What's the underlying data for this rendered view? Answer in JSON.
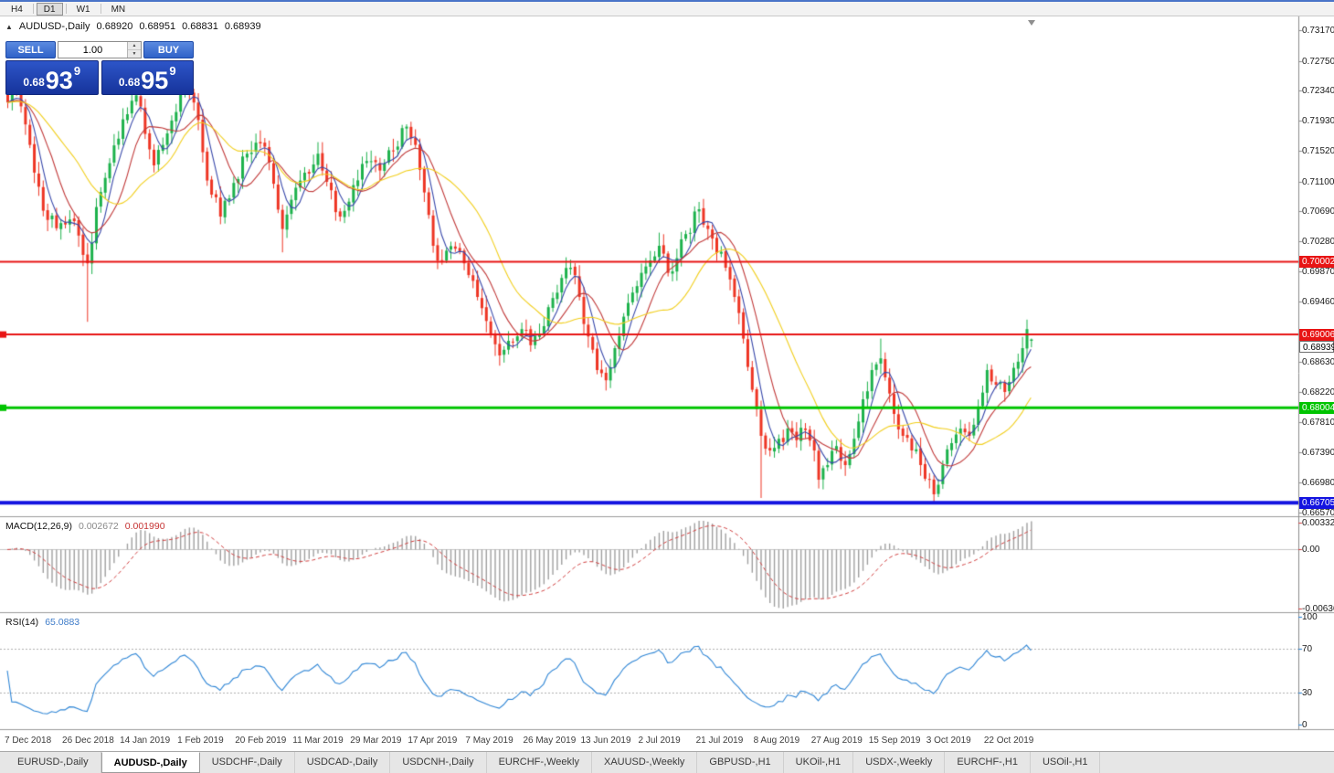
{
  "toolbar": {
    "periods": [
      {
        "label": "H4",
        "active": false
      },
      {
        "label": "D1",
        "active": true
      },
      {
        "label": "W1",
        "active": false
      },
      {
        "label": "MN",
        "active": false
      }
    ]
  },
  "chart_header": {
    "symbol": "AUDUSD-,Daily",
    "open": "0.68920",
    "high": "0.68951",
    "low": "0.68831",
    "close": "0.68939"
  },
  "trade_panel": {
    "sell_label": "SELL",
    "buy_label": "BUY",
    "volume": "1.00",
    "bid": {
      "prefix": "0.68",
      "pips": "93",
      "frac": "9"
    },
    "ask": {
      "prefix": "0.68",
      "pips": "95",
      "frac": "9"
    }
  },
  "price_scale": {
    "ticks": [
      {
        "label": "0.73170",
        "value": 0.7317
      },
      {
        "label": "0.72750",
        "value": 0.7275
      },
      {
        "label": "0.72340",
        "value": 0.7234
      },
      {
        "label": "0.71930",
        "value": 0.7193
      },
      {
        "label": "0.71520",
        "value": 0.7152
      },
      {
        "label": "0.71100",
        "value": 0.711
      },
      {
        "label": "0.70690",
        "value": 0.7069
      },
      {
        "label": "0.70280",
        "value": 0.7028
      },
      {
        "label": "0.69870",
        "value": 0.6987
      },
      {
        "label": "0.69460",
        "value": 0.6946
      },
      {
        "label": "0.68630",
        "value": 0.6863
      },
      {
        "label": "0.68220",
        "value": 0.6822
      },
      {
        "label": "0.67810",
        "value": 0.6781
      },
      {
        "label": "0.67390",
        "value": 0.6739
      },
      {
        "label": "0.66980",
        "value": 0.6698
      },
      {
        "label": "0.66570",
        "value": 0.6657
      }
    ]
  },
  "hlines": [
    {
      "price": 0.70002,
      "label": "0.70002",
      "color": "#e81414",
      "width": 2,
      "handle": false
    },
    {
      "price": 0.69006,
      "label": "0.69006",
      "color": "#e81414",
      "width": 2,
      "handle": true
    },
    {
      "price": 0.68004,
      "label": "0.68004",
      "color": "#00c400",
      "width": 3,
      "handle": true
    },
    {
      "price": 0.66705,
      "label": "0.66705",
      "color": "#1414e0",
      "width": 4,
      "handle": false
    }
  ],
  "bid_marker": {
    "label": "0.68939",
    "price": 0.68939
  },
  "macd": {
    "title": "MACD(12,26,9)",
    "value_main": "0.002672",
    "value_signal": "0.001990",
    "scale_top": "0.00332",
    "scale_zero": "0.00",
    "scale_bottom": "-0.00636"
  },
  "rsi": {
    "title": "RSI(14)",
    "value": "65.0883",
    "ticks": [
      {
        "label": "100",
        "value": 100
      },
      {
        "label": "70",
        "value": 70
      },
      {
        "label": "30",
        "value": 30
      },
      {
        "label": "0",
        "value": 0
      }
    ],
    "levels": [
      70,
      30
    ]
  },
  "date_axis": {
    "labels": [
      "7 Dec 2018",
      "26 Dec 2018",
      "14 Jan 2019",
      "1 Feb 2019",
      "20 Feb 2019",
      "11 Mar 2019",
      "29 Mar 2019",
      "17 Apr 2019",
      "7 May 2019",
      "26 May 2019",
      "13 Jun 2019",
      "2 Jul 2019",
      "21 Jul 2019",
      "8 Aug 2019",
      "27 Aug 2019",
      "15 Sep 2019",
      "3 Oct 2019",
      "22 Oct 2019"
    ],
    "candles_per_label": 13
  },
  "tabs": {
    "items": [
      "EURUSD-,Daily",
      "AUDUSD-,Daily",
      "USDCHF-,Daily",
      "USDCAD-,Daily",
      "USDCNH-,Daily",
      "EURCHF-,Weekly",
      "XAUUSD-,Weekly",
      "GBPUSD-,H1",
      "UKOil-,H1",
      "USDX-,Weekly",
      "EURCHF-,H1",
      "USOil-,H1"
    ],
    "active_index": 1
  },
  "colors": {
    "up": "#1db24c",
    "down": "#ee3524",
    "ma_fast": "#3949ab",
    "ma_medium": "#c23b3b",
    "ma_slow": "#f2cf1d",
    "macd_hist": "#a0a0a0",
    "macd_signal": "#d23f3f",
    "macd_zero": "#c8c8c8",
    "rsi_line": "#2f86d6",
    "rsi_level": "#b0b0b0",
    "separator": "#9c9c9c",
    "scale_border": "#8a8a8a"
  },
  "chart_data": {
    "type": "candlestick",
    "symbol": "AUDUSD",
    "timeframe": "Daily",
    "num_candles": 232,
    "ylim": [
      0.6657,
      0.7317
    ],
    "ohlc_current": {
      "open": 0.6892,
      "high": 0.68951,
      "low": 0.68831,
      "close": 0.68939
    },
    "horizontal_levels": [
      0.70002,
      0.69006,
      0.68004,
      0.66705
    ],
    "indicators": [
      "MACD(12,26,9)",
      "RSI(14)"
    ],
    "moving_averages": [
      {
        "name": "fast",
        "period": 5,
        "color": "#3949ab"
      },
      {
        "name": "medium",
        "period": 10,
        "color": "#c23b3b"
      },
      {
        "name": "slow",
        "period": 21,
        "color": "#f2cf1d"
      }
    ],
    "price_anchors": [
      [
        0,
        0.7218
      ],
      [
        2,
        0.7232
      ],
      [
        5,
        0.716
      ],
      [
        8,
        0.707
      ],
      [
        11,
        0.7046
      ],
      [
        14,
        0.7058
      ],
      [
        16,
        0.7036
      ],
      [
        18,
        0.6998
      ],
      [
        20,
        0.7075
      ],
      [
        23,
        0.7135
      ],
      [
        26,
        0.7195
      ],
      [
        29,
        0.7228
      ],
      [
        31,
        0.7175
      ],
      [
        33,
        0.7132
      ],
      [
        35,
        0.716
      ],
      [
        38,
        0.7205
      ],
      [
        40,
        0.7242
      ],
      [
        42,
        0.7218
      ],
      [
        44,
        0.715
      ],
      [
        46,
        0.7092
      ],
      [
        48,
        0.7062
      ],
      [
        51,
        0.7108
      ],
      [
        54,
        0.7148
      ],
      [
        57,
        0.7162
      ],
      [
        59,
        0.7136
      ],
      [
        62,
        0.7045
      ],
      [
        64,
        0.7085
      ],
      [
        67,
        0.7122
      ],
      [
        70,
        0.7148
      ],
      [
        73,
        0.7098
      ],
      [
        75,
        0.7062
      ],
      [
        78,
        0.7105
      ],
      [
        81,
        0.7138
      ],
      [
        84,
        0.7125
      ],
      [
        87,
        0.7152
      ],
      [
        90,
        0.7185
      ],
      [
        92,
        0.716
      ],
      [
        94,
        0.7095
      ],
      [
        96,
        0.7022
      ],
      [
        98,
        0.7002
      ],
      [
        101,
        0.7018
      ],
      [
        103,
        0.6998
      ],
      [
        106,
        0.6952
      ],
      [
        109,
        0.6902
      ],
      [
        111,
        0.6872
      ],
      [
        113,
        0.6892
      ],
      [
        116,
        0.6908
      ],
      [
        118,
        0.6886
      ],
      [
        120,
        0.6902
      ],
      [
        122,
        0.6938
      ],
      [
        125,
        0.6978
      ],
      [
        127,
        0.6992
      ],
      [
        129,
        0.6952
      ],
      [
        131,
        0.6898
      ],
      [
        133,
        0.6852
      ],
      [
        135,
        0.6838
      ],
      [
        137,
        0.6882
      ],
      [
        139,
        0.6925
      ],
      [
        141,
        0.6958
      ],
      [
        143,
        0.6985
      ],
      [
        145,
        0.7002
      ],
      [
        147,
        0.7022
      ],
      [
        149,
        0.6985
      ],
      [
        151,
        0.7005
      ],
      [
        153,
        0.7038
      ],
      [
        156,
        0.7072
      ],
      [
        158,
        0.7045
      ],
      [
        160,
        0.7012
      ],
      [
        162,
        0.6992
      ],
      [
        164,
        0.6952
      ],
      [
        166,
        0.6895
      ],
      [
        168,
        0.6825
      ],
      [
        170,
        0.6762
      ],
      [
        172,
        0.6742
      ],
      [
        174,
        0.6758
      ],
      [
        176,
        0.6772
      ],
      [
        178,
        0.6756
      ],
      [
        180,
        0.677
      ],
      [
        182,
        0.6742
      ],
      [
        183,
        0.6702
      ],
      [
        185,
        0.6722
      ],
      [
        187,
        0.6748
      ],
      [
        189,
        0.6722
      ],
      [
        191,
        0.6758
      ],
      [
        193,
        0.6812
      ],
      [
        195,
        0.6852
      ],
      [
        197,
        0.6868
      ],
      [
        198,
        0.6842
      ],
      [
        200,
        0.6792
      ],
      [
        202,
        0.6762
      ],
      [
        204,
        0.6742
      ],
      [
        206,
        0.6722
      ],
      [
        208,
        0.6702
      ],
      [
        209,
        0.6682
      ],
      [
        211,
        0.6722
      ],
      [
        213,
        0.6752
      ],
      [
        215,
        0.6772
      ],
      [
        217,
        0.6762
      ],
      [
        219,
        0.6802
      ],
      [
        221,
        0.6852
      ],
      [
        223,
        0.6832
      ],
      [
        225,
        0.6822
      ],
      [
        227,
        0.6855
      ],
      [
        229,
        0.6882
      ],
      [
        230,
        0.6908
      ],
      [
        231,
        0.68939
      ]
    ],
    "special_candles": {
      "18": {
        "low": 0.6918
      },
      "40": {
        "high": 0.7248
      },
      "62": {
        "low": 0.7013
      },
      "111": {
        "low": 0.6858
      },
      "127": {
        "high": 0.7003
      },
      "135": {
        "low": 0.6824
      },
      "147": {
        "high": 0.704
      },
      "156": {
        "high": 0.7082
      },
      "170": {
        "low": 0.6677
      },
      "183": {
        "low": 0.669
      },
      "197": {
        "high": 0.6895
      },
      "209": {
        "low": 0.66705
      },
      "230": {
        "high": 0.6921
      },
      "231": {
        "open": 0.6892,
        "high": 0.68951,
        "low": 0.68831,
        "close": 0.68939
      }
    }
  }
}
